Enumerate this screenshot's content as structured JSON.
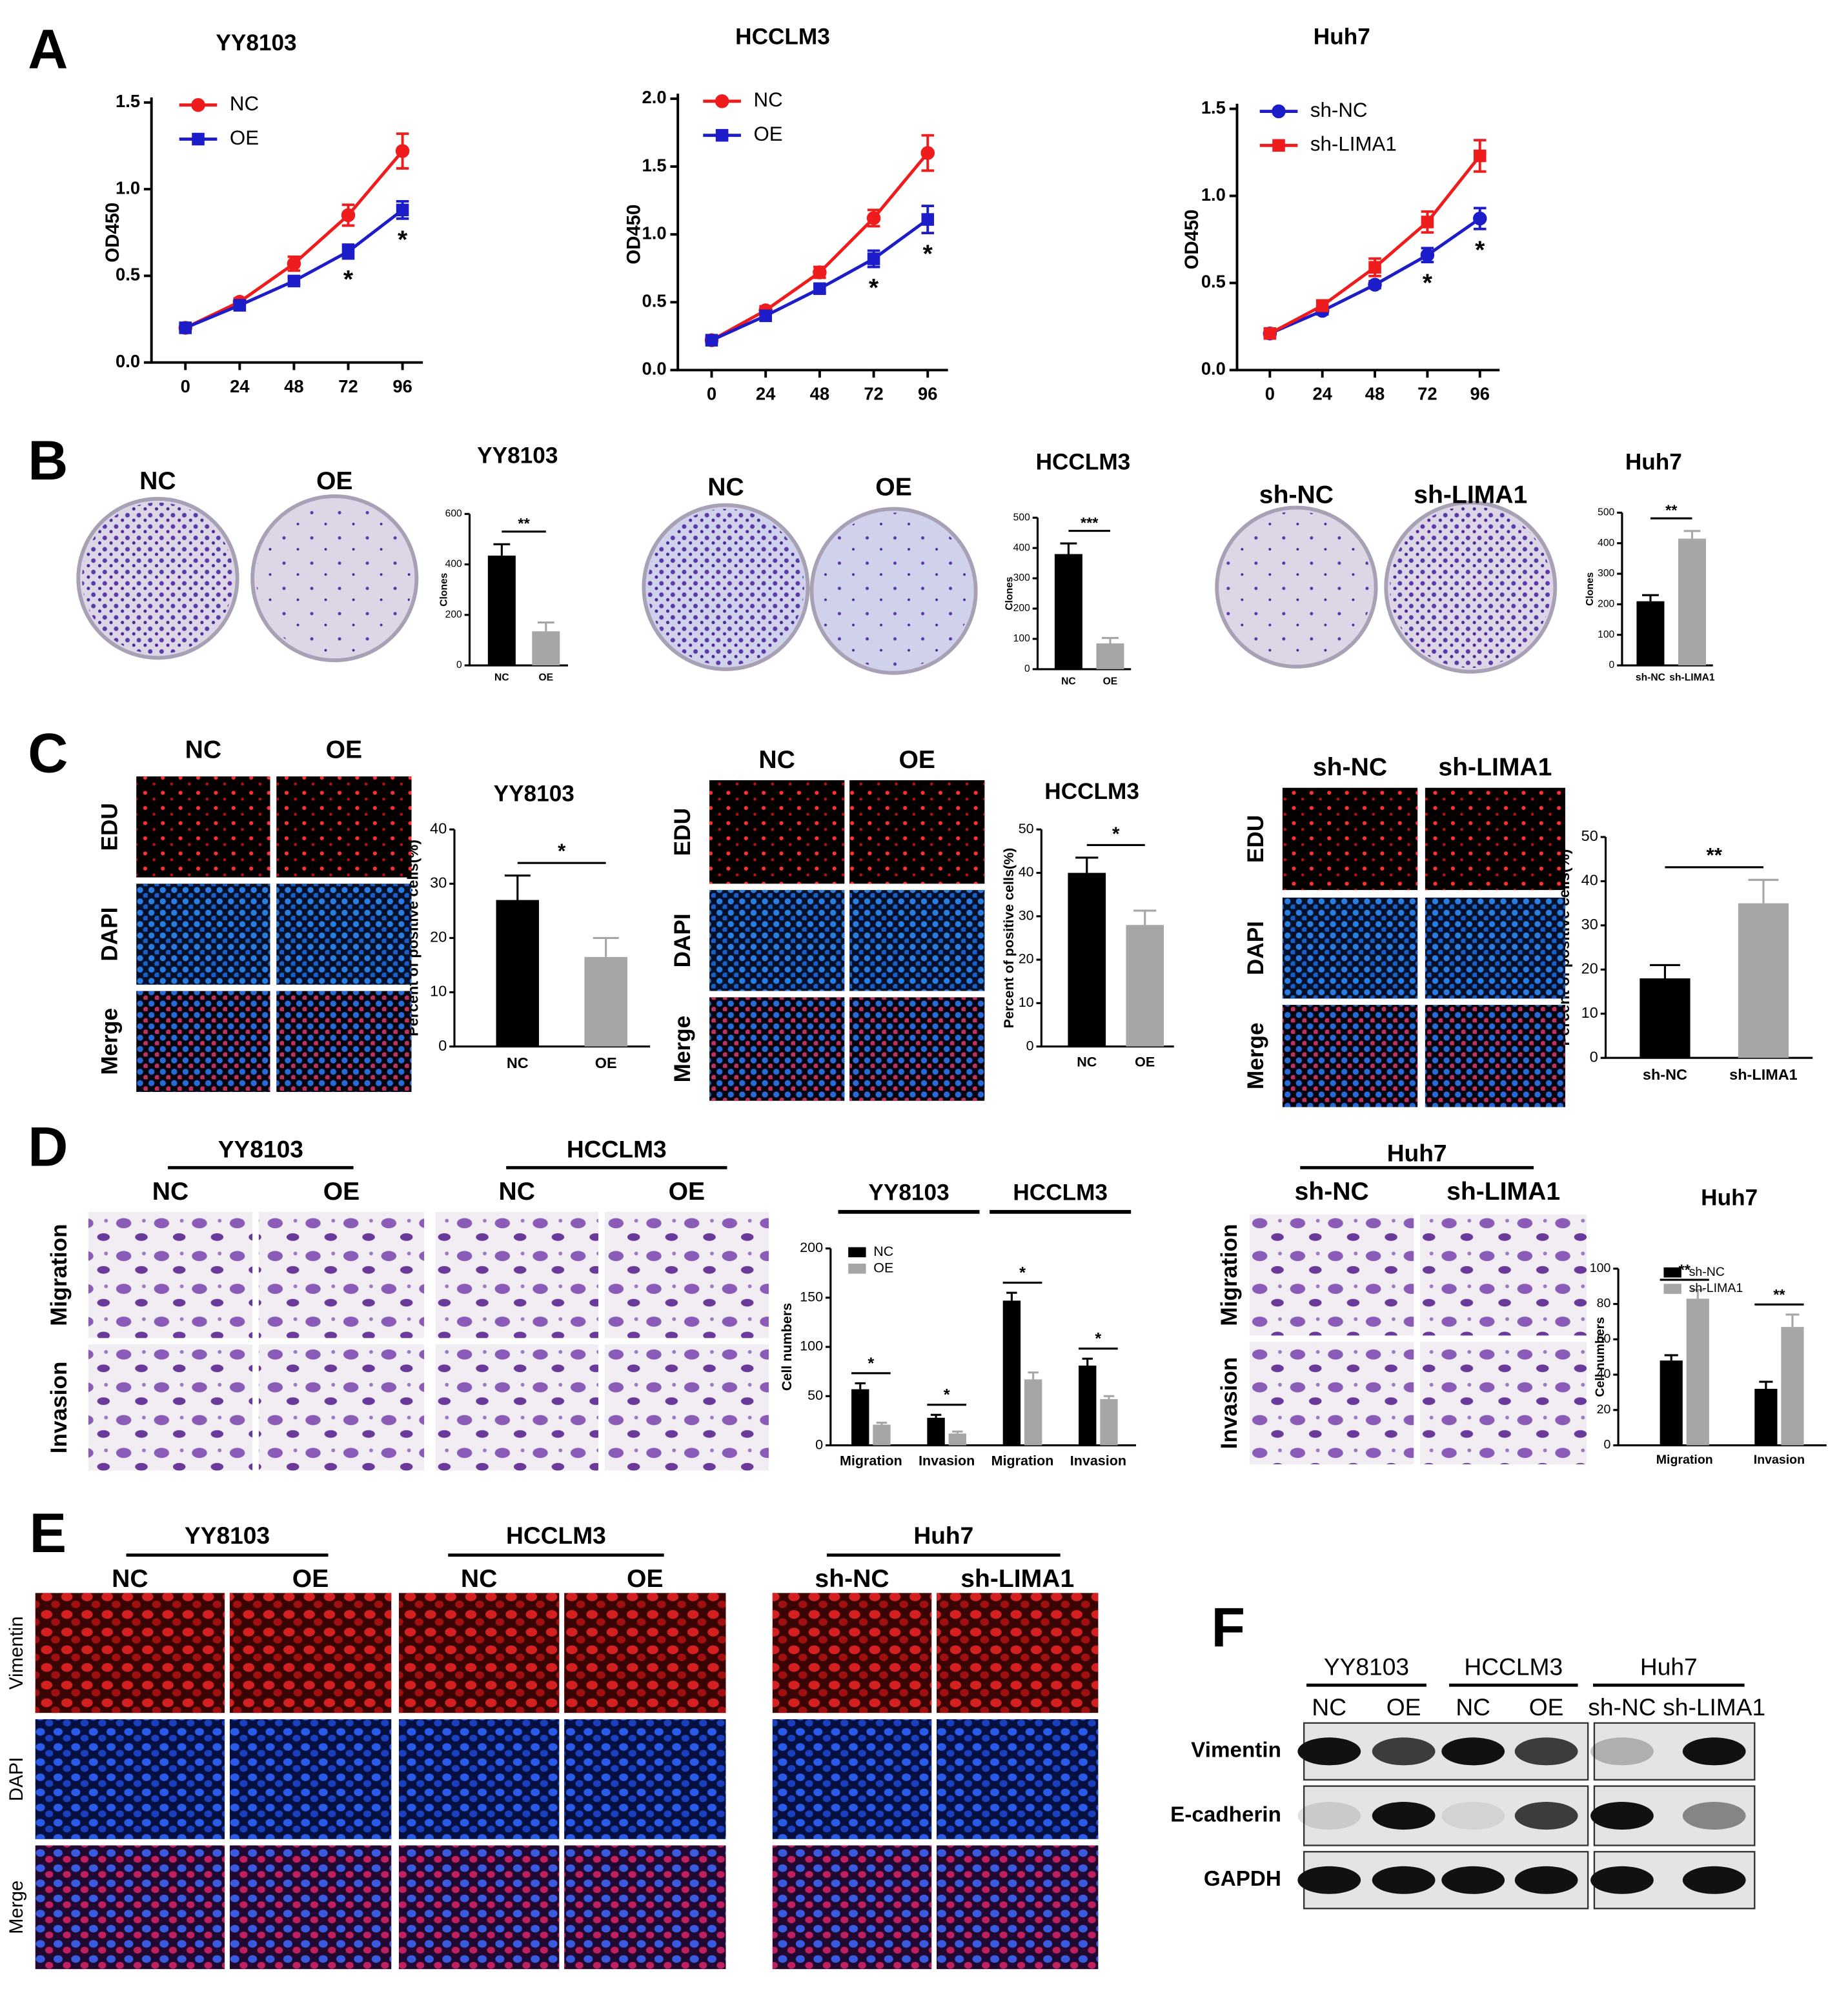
{
  "figure": {
    "panel_labels": [
      "A",
      "B",
      "C",
      "D",
      "E",
      "F"
    ],
    "B_plates": [
      {
        "columns": [
          "NC",
          "OE"
        ]
      },
      {
        "columns": [
          "NC",
          "OE"
        ]
      },
      {
        "columns": [
          "sh-NC",
          "sh-LIMA1"
        ]
      }
    ],
    "C_images": [
      {
        "columns": [
          "NC",
          "OE"
        ],
        "rows": [
          "EDU",
          "DAPI",
          "Merge"
        ]
      },
      {
        "columns": [
          "NC",
          "OE"
        ],
        "rows": [
          "EDU",
          "DAPI",
          "Merge"
        ]
      },
      {
        "columns": [
          "sh-NC",
          "sh-LIMA1"
        ],
        "rows": [
          "EDU",
          "DAPI",
          "Merge"
        ]
      }
    ],
    "D_images": [
      {
        "title": "YY8103",
        "columns": [
          "NC",
          "OE"
        ],
        "rows": [
          "Migration",
          "Invasion"
        ]
      },
      {
        "title": "HCCLM3",
        "columns": [
          "NC",
          "OE"
        ]
      },
      {
        "title": "Huh7",
        "columns": [
          "sh-NC",
          "sh-LIMA1"
        ],
        "rows": [
          "Migration",
          "Invasion"
        ]
      }
    ],
    "E_images": {
      "rows": [
        "Vimentin",
        "DAPI",
        "Merge"
      ],
      "groups": [
        {
          "title": "YY8103",
          "columns": [
            "NC",
            "OE"
          ]
        },
        {
          "title": "HCCLM3",
          "columns": [
            "NC",
            "OE"
          ]
        },
        {
          "title": "Huh7",
          "columns": [
            "sh-NC",
            "sh-LIMA1"
          ]
        }
      ]
    },
    "F_blot": {
      "rows": [
        "Vimentin",
        "E-cadherin",
        "GAPDH"
      ],
      "groups": [
        {
          "title": "YY8103",
          "lanes": [
            "NC",
            "OE"
          ]
        },
        {
          "title": "HCCLM3",
          "lanes": [
            "NC",
            "OE"
          ]
        },
        {
          "title": "Huh7",
          "lanes": [
            "sh-NC",
            "sh-LIMA1"
          ]
        }
      ]
    }
  },
  "chart_data": [
    {
      "type": "line",
      "title": "YY8103",
      "y_label": "OD450",
      "x": [
        0,
        24,
        48,
        72,
        96
      ],
      "xlim": [
        -15,
        105
      ],
      "xticks": [
        0,
        24,
        48,
        72,
        96
      ],
      "ylim": [
        0,
        1.5
      ],
      "yticks": [
        {
          "value": 0,
          "label": "0.0"
        },
        0.5,
        {
          "value": 1,
          "label": "1.0"
        },
        1.5
      ],
      "series": [
        {
          "name": "NC",
          "color": "#ee1c1c",
          "marker": "circle",
          "values": [
            0.2,
            0.35,
            0.57,
            0.85,
            1.22
          ],
          "errors": [
            0.02,
            0.02,
            0.04,
            0.06,
            0.1
          ]
        },
        {
          "name": "OE",
          "color": "#1c1cc8",
          "marker": "square",
          "values": [
            0.2,
            0.33,
            0.47,
            0.64,
            0.88
          ],
          "errors": [
            0.02,
            0.02,
            0.02,
            0.04,
            0.05
          ]
        }
      ],
      "annotations": [
        null,
        null,
        null,
        "*",
        "*"
      ]
    },
    {
      "type": "line",
      "title": "HCCLM3",
      "y_label": "OD450",
      "x": [
        0,
        24,
        48,
        72,
        96
      ],
      "xlim": [
        -15,
        105
      ],
      "xticks": [
        0,
        24,
        48,
        72,
        96
      ],
      "ylim": [
        0,
        2
      ],
      "yticks": [
        {
          "value": 0,
          "label": "0.0"
        },
        0.5,
        {
          "value": 1,
          "label": "1.0"
        },
        1.5,
        {
          "value": 2,
          "label": "2.0"
        }
      ],
      "series": [
        {
          "name": "NC",
          "color": "#ee1c1c",
          "marker": "circle",
          "values": [
            0.22,
            0.44,
            0.72,
            1.12,
            1.6
          ],
          "errors": [
            0.02,
            0.03,
            0.04,
            0.06,
            0.13
          ]
        },
        {
          "name": "OE",
          "color": "#1c1cc8",
          "marker": "square",
          "values": [
            0.22,
            0.4,
            0.6,
            0.82,
            1.11
          ],
          "errors": [
            0.02,
            0.02,
            0.03,
            0.06,
            0.1
          ]
        }
      ],
      "annotations": [
        null,
        null,
        null,
        "*",
        "*"
      ]
    },
    {
      "type": "line",
      "title": "Huh7",
      "y_label": "OD450",
      "x": [
        0,
        24,
        48,
        72,
        96
      ],
      "xlim": [
        -15,
        105
      ],
      "xticks": [
        0,
        24,
        48,
        72,
        96
      ],
      "ylim": [
        0,
        1.5
      ],
      "yticks": [
        {
          "value": 0,
          "label": "0.0"
        },
        0.5,
        {
          "value": 1,
          "label": "1.0"
        },
        1.5
      ],
      "series": [
        {
          "name": "sh-NC",
          "color": "#1c1cc8",
          "marker": "circle",
          "values": [
            0.21,
            0.34,
            0.49,
            0.66,
            0.87
          ],
          "errors": [
            0.02,
            0.02,
            0.02,
            0.04,
            0.06
          ]
        },
        {
          "name": "sh-LIMA1",
          "color": "#ee1c1c",
          "marker": "square",
          "values": [
            0.21,
            0.37,
            0.59,
            0.85,
            1.23
          ],
          "errors": [
            0.02,
            0.03,
            0.05,
            0.06,
            0.09
          ]
        }
      ],
      "annotations": [
        null,
        null,
        null,
        "*",
        "*"
      ]
    },
    {
      "type": "bar",
      "title": "YY8103",
      "y_label": "Clones",
      "categories": [
        "NC",
        "OE"
      ],
      "values": [
        435,
        135
      ],
      "errors": [
        45,
        35
      ],
      "colors": [
        "#000000",
        "#a6a6a6"
      ],
      "ylim": [
        0,
        600
      ],
      "yticks": [
        0,
        200,
        400,
        600
      ],
      "significance": "**"
    },
    {
      "type": "bar",
      "title": "HCCLM3",
      "y_label": "Clones",
      "categories": [
        "NC",
        "OE"
      ],
      "values": [
        380,
        85
      ],
      "errors": [
        35,
        18
      ],
      "colors": [
        "#000000",
        "#a6a6a6"
      ],
      "ylim": [
        0,
        500
      ],
      "yticks": [
        0,
        100,
        200,
        300,
        400,
        500
      ],
      "significance": "***"
    },
    {
      "type": "bar",
      "title": "Huh7",
      "y_label": "Clones",
      "categories": [
        "sh-NC",
        "sh-LIMA1"
      ],
      "values": [
        210,
        415
      ],
      "errors": [
        20,
        25
      ],
      "colors": [
        "#000000",
        "#a6a6a6"
      ],
      "ylim": [
        0,
        500
      ],
      "yticks": [
        0,
        100,
        200,
        300,
        400,
        500
      ],
      "significance": "**"
    },
    {
      "type": "bar",
      "title": "YY8103",
      "y_label": "Percent of positive cells(%)",
      "categories": [
        "NC",
        "OE"
      ],
      "values": [
        27,
        16.5
      ],
      "errors": [
        4.5,
        3.5
      ],
      "colors": [
        "#000000",
        "#a6a6a6"
      ],
      "ylim": [
        0,
        40
      ],
      "yticks": [
        0,
        10,
        20,
        30,
        40
      ],
      "significance": "*"
    },
    {
      "type": "bar",
      "title": "HCCLM3",
      "y_label": "Percent of positive cells(%)",
      "categories": [
        "NC",
        "OE"
      ],
      "values": [
        40,
        28
      ],
      "errors": [
        3.5,
        3.3
      ],
      "colors": [
        "#000000",
        "#a6a6a6"
      ],
      "ylim": [
        0,
        50
      ],
      "yticks": [
        0,
        10,
        20,
        30,
        40,
        50
      ],
      "significance": "*"
    },
    {
      "type": "bar",
      "y_label": "Percent of positive cells(%)",
      "categories": [
        "sh-NC",
        "sh-LIMA1"
      ],
      "values": [
        18,
        35
      ],
      "errors": [
        3,
        5.3
      ],
      "colors": [
        "#000000",
        "#a6a6a6"
      ],
      "ylim": [
        0,
        50
      ],
      "yticks": [
        0,
        10,
        20,
        30,
        40,
        50
      ],
      "significance": "**"
    },
    {
      "type": "bar",
      "y_label": "Cell numbers",
      "groups": [
        "YY8103",
        "HCCLM3"
      ],
      "categories": [
        "Migration",
        "Invasion",
        "Migration",
        "Invasion"
      ],
      "series": [
        {
          "name": "NC",
          "color": "#000000",
          "values": [
            57,
            28,
            147,
            81
          ],
          "errors": [
            6,
            3,
            8,
            7
          ]
        },
        {
          "name": "OE",
          "color": "#a6a6a6",
          "values": [
            21,
            12,
            67,
            47
          ],
          "errors": [
            2,
            2,
            7,
            3
          ]
        }
      ],
      "ylim": [
        0,
        200
      ],
      "yticks": [
        0,
        50,
        100,
        150,
        200
      ],
      "significance": [
        "*",
        "*",
        "*",
        "*"
      ]
    },
    {
      "type": "bar",
      "title": "Huh7",
      "y_label": "Cell numbers",
      "categories": [
        "Migration",
        "Invasion"
      ],
      "series": [
        {
          "name": "sh-NC",
          "color": "#000000",
          "values": [
            48,
            32
          ],
          "errors": [
            3,
            4
          ]
        },
        {
          "name": "sh-LIMA1",
          "color": "#a6a6a6",
          "values": [
            83,
            67
          ],
          "errors": [
            5,
            7
          ]
        }
      ],
      "ylim": [
        0,
        100
      ],
      "yticks": [
        0,
        20,
        40,
        60,
        80,
        100
      ],
      "significance": [
        "**",
        "**"
      ]
    }
  ]
}
